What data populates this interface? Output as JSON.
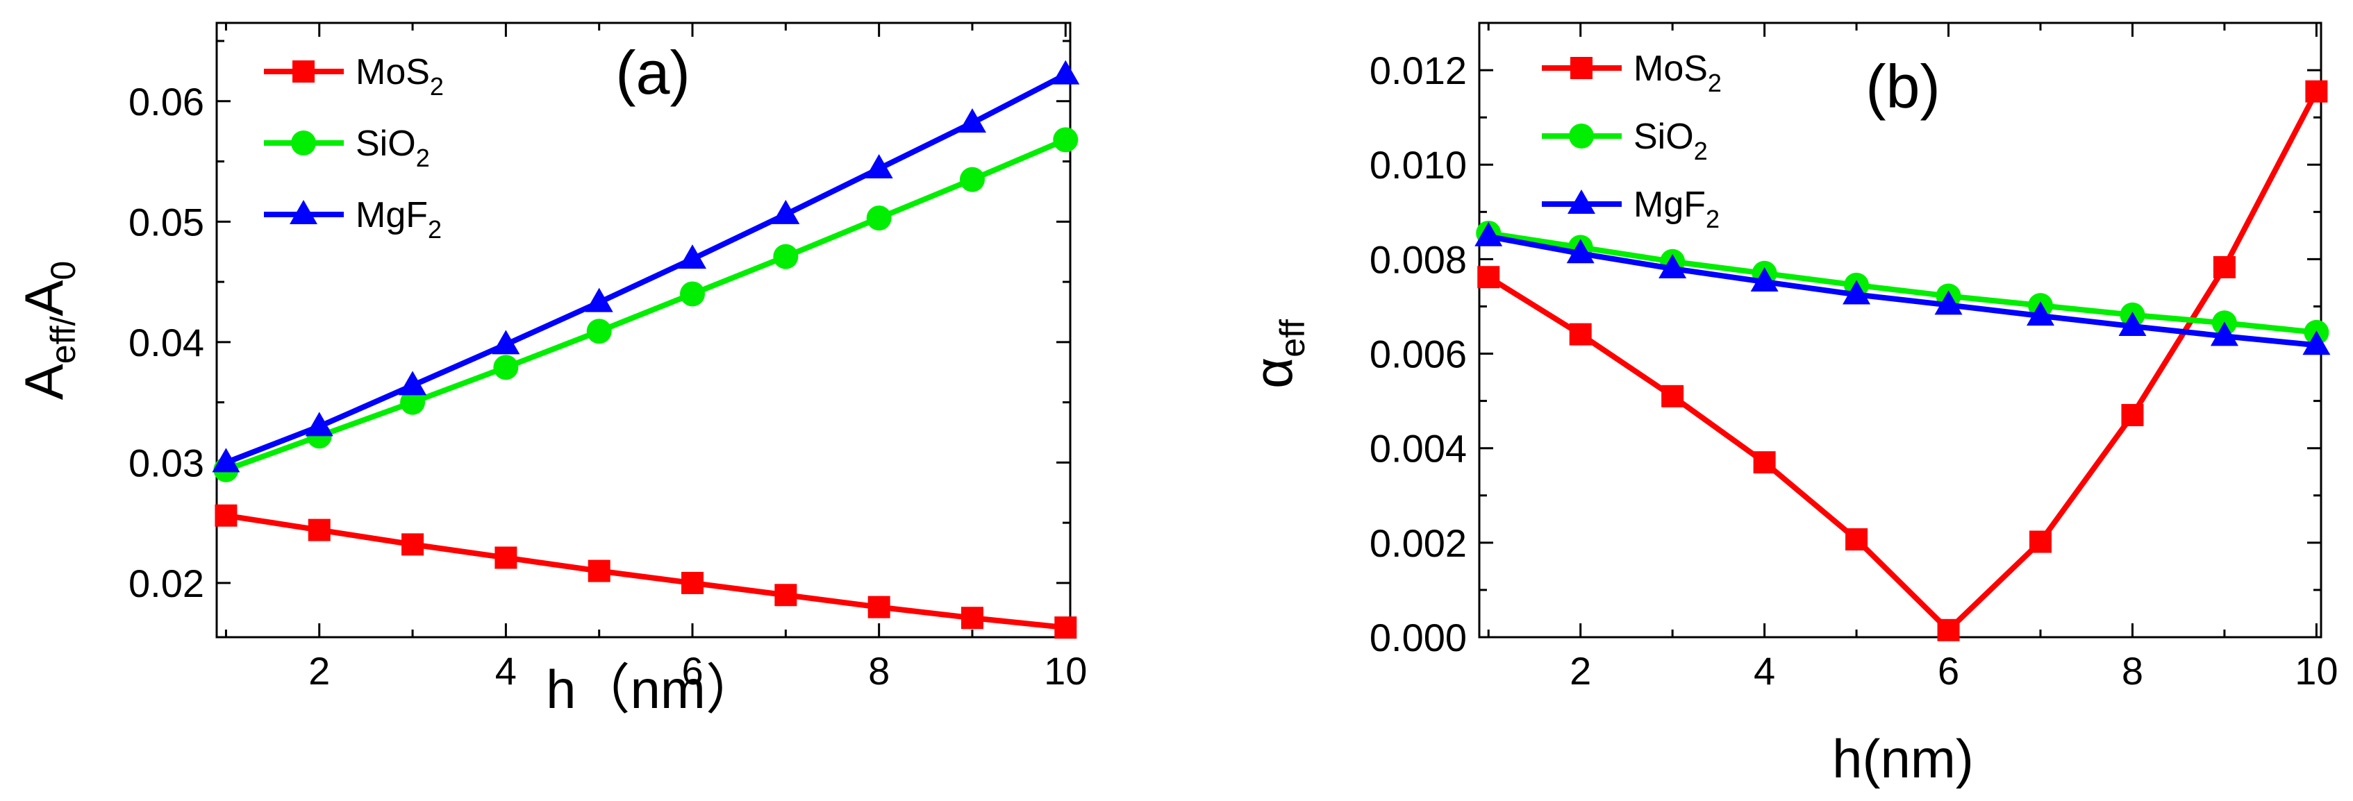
{
  "chart_data": [
    {
      "type": "line",
      "panel_label": "(a)",
      "xlabel": "h（nm）",
      "ylabel": {
        "base": "A",
        "sub1": "eff/",
        "mid": "A",
        "sub2": "0"
      },
      "x": [
        1,
        2,
        3,
        4,
        5,
        6,
        7,
        8,
        9,
        10
      ],
      "xlim": [
        0.9,
        10.05
      ],
      "ylim": [
        0.0155,
        0.0665
      ],
      "xticks": [
        2,
        4,
        6,
        8,
        10
      ],
      "xtick_labels": [
        "2",
        "4",
        "6",
        "8",
        "10"
      ],
      "yticks": [
        0.02,
        0.03,
        0.04,
        0.05,
        0.06
      ],
      "ytick_labels": [
        "0.02",
        "0.03",
        "0.04",
        "0.05",
        "0.06"
      ],
      "legend_position": "top-left",
      "series": [
        {
          "name": "MoS2",
          "label": "MoS",
          "sub": "2",
          "color": "#ff0000",
          "marker": "square",
          "values": [
            0.0256,
            0.0244,
            0.0232,
            0.0221,
            0.021,
            0.02,
            0.019,
            0.018,
            0.0171,
            0.0163
          ]
        },
        {
          "name": "SiO2",
          "label": "SiO",
          "sub": "2",
          "color": "#00ee00",
          "marker": "circle",
          "values": [
            0.0294,
            0.0322,
            0.035,
            0.0379,
            0.0409,
            0.044,
            0.0471,
            0.0503,
            0.0535,
            0.0568
          ]
        },
        {
          "name": "MgF2",
          "label": "MgF",
          "sub": "2",
          "color": "#0000ff",
          "marker": "triangle",
          "values": [
            0.03,
            0.033,
            0.0364,
            0.0398,
            0.0433,
            0.0469,
            0.0506,
            0.0544,
            0.0582,
            0.0622
          ]
        }
      ]
    },
    {
      "type": "line",
      "panel_label": "(b)",
      "xlabel": "h(nm)",
      "ylabel": {
        "base": "α",
        "sub1": "eff"
      },
      "x": [
        1,
        2,
        3,
        4,
        5,
        6,
        7,
        8,
        9,
        10
      ],
      "xlim": [
        0.9,
        10.05
      ],
      "ylim": [
        0.0,
        0.013
      ],
      "xticks": [
        2,
        4,
        6,
        8,
        10
      ],
      "xtick_labels": [
        "2",
        "4",
        "6",
        "8",
        "10"
      ],
      "yticks": [
        0.0,
        0.002,
        0.004,
        0.006,
        0.008,
        0.01,
        0.012
      ],
      "ytick_labels": [
        "0.000",
        "0.002",
        "0.004",
        "0.006",
        "0.008",
        "0.010",
        "0.012"
      ],
      "legend_position": "top-left",
      "series": [
        {
          "name": "MoS2",
          "label": "MoS",
          "sub": "2",
          "color": "#ff0000",
          "marker": "square",
          "values": [
            0.00762,
            0.00641,
            0.0051,
            0.0037,
            0.00207,
            0.00015,
            0.00202,
            0.0047,
            0.00783,
            0.01155
          ]
        },
        {
          "name": "SiO2",
          "label": "SiO",
          "sub": "2",
          "color": "#00ee00",
          "marker": "circle",
          "values": [
            0.00855,
            0.00825,
            0.00795,
            0.0077,
            0.00745,
            0.00722,
            0.00702,
            0.00682,
            0.00665,
            0.00645
          ]
        },
        {
          "name": "MgF2",
          "label": "MgF",
          "sub": "2",
          "color": "#0000ff",
          "marker": "triangle",
          "values": [
            0.00848,
            0.00812,
            0.0078,
            0.00752,
            0.00725,
            0.00703,
            0.0068,
            0.00658,
            0.00637,
            0.00618
          ]
        }
      ]
    }
  ]
}
